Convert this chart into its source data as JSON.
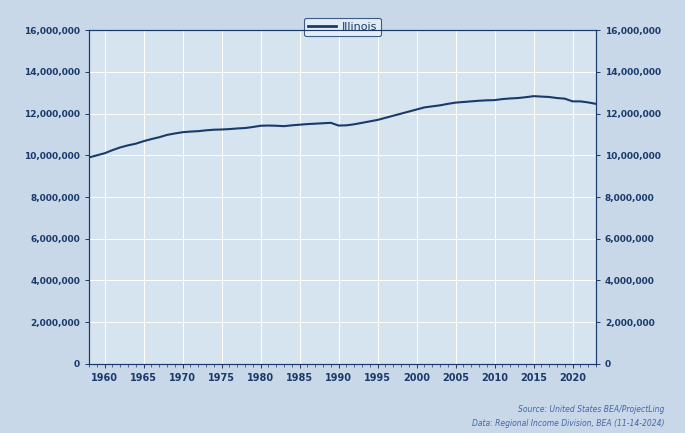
{
  "title": "Illinois",
  "years": [
    1958,
    1959,
    1960,
    1961,
    1962,
    1963,
    1964,
    1965,
    1966,
    1967,
    1968,
    1969,
    1970,
    1971,
    1972,
    1973,
    1974,
    1975,
    1976,
    1977,
    1978,
    1979,
    1980,
    1981,
    1982,
    1983,
    1984,
    1985,
    1986,
    1987,
    1988,
    1989,
    1990,
    1991,
    1992,
    1993,
    1994,
    1995,
    1996,
    1997,
    1998,
    1999,
    2000,
    2001,
    2002,
    2003,
    2004,
    2005,
    2006,
    2007,
    2008,
    2009,
    2010,
    2011,
    2012,
    2013,
    2014,
    2015,
    2016,
    2017,
    2018,
    2019,
    2020,
    2021,
    2022,
    2023
  ],
  "illinois_pop": [
    9900000,
    10000000,
    10100000,
    10250000,
    10380000,
    10480000,
    10560000,
    10680000,
    10780000,
    10870000,
    10980000,
    11050000,
    11110000,
    11140000,
    11160000,
    11200000,
    11230000,
    11240000,
    11260000,
    11290000,
    11310000,
    11360000,
    11420000,
    11430000,
    11420000,
    11400000,
    11440000,
    11470000,
    11500000,
    11520000,
    11540000,
    11560000,
    11430000,
    11440000,
    11490000,
    11560000,
    11630000,
    11700000,
    11800000,
    11900000,
    12000000,
    12100000,
    12200000,
    12300000,
    12350000,
    12400000,
    12470000,
    12530000,
    12560000,
    12590000,
    12620000,
    12640000,
    12650000,
    12700000,
    12730000,
    12750000,
    12790000,
    12840000,
    12820000,
    12800000,
    12750000,
    12720000,
    12590000,
    12590000,
    12540000,
    12470000
  ],
  "line_color": "#1a3a6b",
  "line_width": 1.5,
  "plot_bg_color": "#d6e4f0",
  "fig_bg_color": "#c8d8e8",
  "inner_bg_color": "#d6e4f0",
  "ylim": [
    0,
    16000000
  ],
  "xlim_start": 1958,
  "xlim_end": 2023,
  "ytick_step": 2000000,
  "xticks": [
    1960,
    1965,
    1970,
    1975,
    1980,
    1985,
    1990,
    1995,
    2000,
    2005,
    2010,
    2015,
    2020
  ],
  "source_line1": "Source: United States BEA/ProjectLing",
  "source_line2": "Data: Regional Income Division, BEA (11-14-2024)",
  "legend_label": "Illinois",
  "tick_label_color": "#1a3a6b",
  "grid_color": "#ffffff",
  "spine_color": "#1a3a6b",
  "bottom_bg_color": "#000000"
}
